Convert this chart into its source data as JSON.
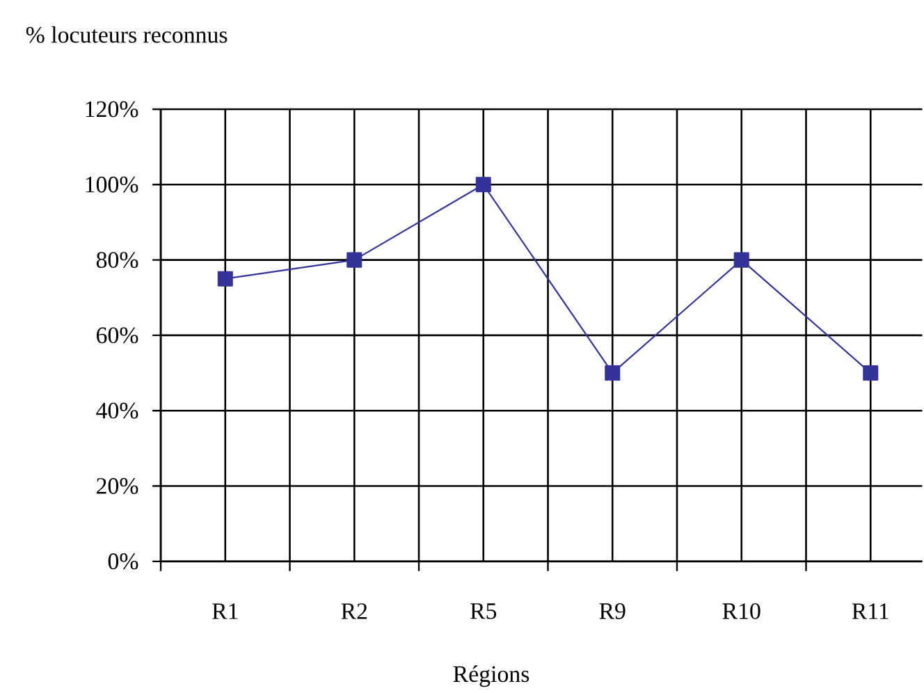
{
  "chart_data": {
    "type": "line",
    "ylabel": "% locuteurs reconnus",
    "xlabel": "Régions",
    "categories": [
      "R1",
      "R2",
      "R5",
      "R9",
      "R10",
      "R11"
    ],
    "values": [
      75,
      80,
      100,
      50,
      80,
      50
    ],
    "color": "#333399",
    "marker": "square",
    "line_style": "solid",
    "ylim": [
      0,
      120
    ],
    "yticks": [
      {
        "value": 0,
        "label": "0%"
      },
      {
        "value": 20,
        "label": "20%"
      },
      {
        "value": 40,
        "label": "40%"
      },
      {
        "value": 60,
        "label": "60%"
      },
      {
        "value": 80,
        "label": "80%"
      },
      {
        "value": 100,
        "label": "100%"
      },
      {
        "value": 120,
        "label": "120%"
      }
    ],
    "grid": true
  }
}
